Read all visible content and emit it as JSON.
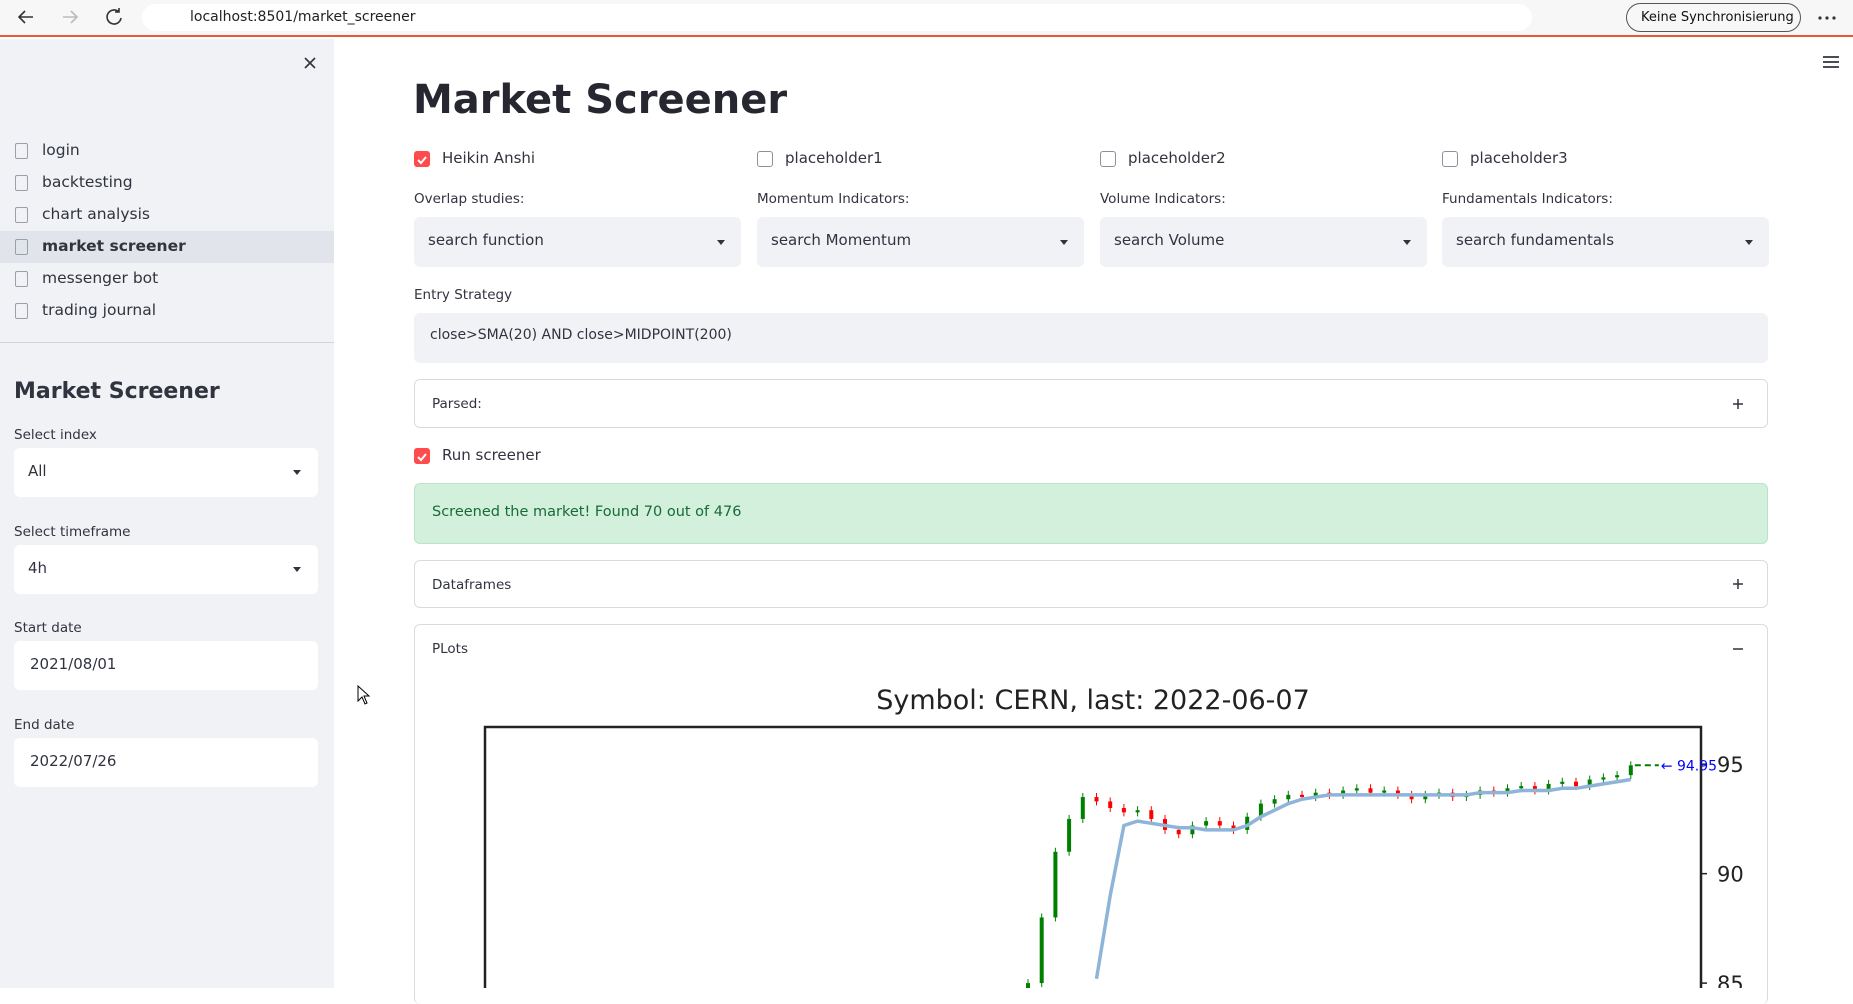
{
  "browser": {
    "url": "localhost:8501/market_screener",
    "sync": "Keine Synchronisierung"
  },
  "sidebar": {
    "nav": [
      "login",
      "backtesting",
      "chart analysis",
      "market screener",
      "messenger bot",
      "trading journal"
    ],
    "heading": "Market Screener",
    "fields": [
      {
        "label": "Select index",
        "value": "All",
        "kind": "select"
      },
      {
        "label": "Select timeframe",
        "value": "4h",
        "kind": "select"
      },
      {
        "label": "Start date",
        "value": "2021/08/01",
        "kind": "date"
      },
      {
        "label": "End date",
        "value": "2022/07/26",
        "kind": "date"
      }
    ]
  },
  "main": {
    "title": "Market Screener",
    "checkboxes": [
      {
        "label": "Heikin Anshi",
        "checked": true
      },
      {
        "label": "placeholder1",
        "checked": false
      },
      {
        "label": "placeholder2",
        "checked": false
      },
      {
        "label": "placeholder3",
        "checked": false
      }
    ],
    "selects": [
      {
        "label": "Overlap studies:",
        "placeholder": "search function"
      },
      {
        "label": "Momentum Indicators:",
        "placeholder": "search Momentum"
      },
      {
        "label": "Volume Indicators:",
        "placeholder": "search Volume"
      },
      {
        "label": "Fundamentals Indicators:",
        "placeholder": "search fundamentals"
      }
    ],
    "entry": {
      "label": "Entry Strategy",
      "value": "close>SMA(20) AND close>MIDPOINT(200)"
    },
    "parsed": "Parsed:",
    "run_screener": {
      "label": "Run screener",
      "checked": true
    },
    "success": "Screened the market! Found 70 out of 476",
    "dataframes": "Dataframes",
    "plots": "PLots",
    "chart_data": {
      "type": "candlestick",
      "title": "Symbol: CERN, last: 2022-06-07",
      "annotation": "← 94.95",
      "ylim": [
        84,
        96.7
      ],
      "yticks": [
        85,
        90,
        95
      ],
      "close": [
        85,
        88,
        91,
        92.5,
        93.5,
        93.3,
        93.0,
        92.8,
        92.9,
        92.5,
        92.0,
        91.8,
        92.2,
        92.4,
        92.2,
        92.0,
        92.6,
        93.2,
        93.4,
        93.6,
        93.5,
        93.7,
        93.6,
        93.8,
        93.9,
        93.7,
        93.8,
        93.6,
        93.4,
        93.6,
        93.7,
        93.5,
        93.6,
        93.8,
        93.7,
        93.9,
        94.0,
        93.8,
        94.1,
        94.2,
        94.0,
        94.3,
        94.4,
        94.5,
        94.95
      ],
      "sma": [
        null,
        null,
        null,
        null,
        null,
        85.2,
        89,
        92.2,
        92.4,
        92.3,
        92.2,
        92.1,
        92.1,
        92.0,
        92.0,
        92.0,
        92.2,
        92.6,
        92.9,
        93.2,
        93.4,
        93.5,
        93.6,
        93.6,
        93.6,
        93.6,
        93.6,
        93.6,
        93.6,
        93.6,
        93.6,
        93.6,
        93.6,
        93.7,
        93.7,
        93.7,
        93.8,
        93.8,
        93.8,
        93.9,
        93.9,
        94.0,
        94.1,
        94.2,
        94.3
      ],
      "up_color": "#008000",
      "down_color": "#ff0000",
      "sma_color": "#8fb4d9",
      "annotation_color": "#0000ff"
    }
  }
}
